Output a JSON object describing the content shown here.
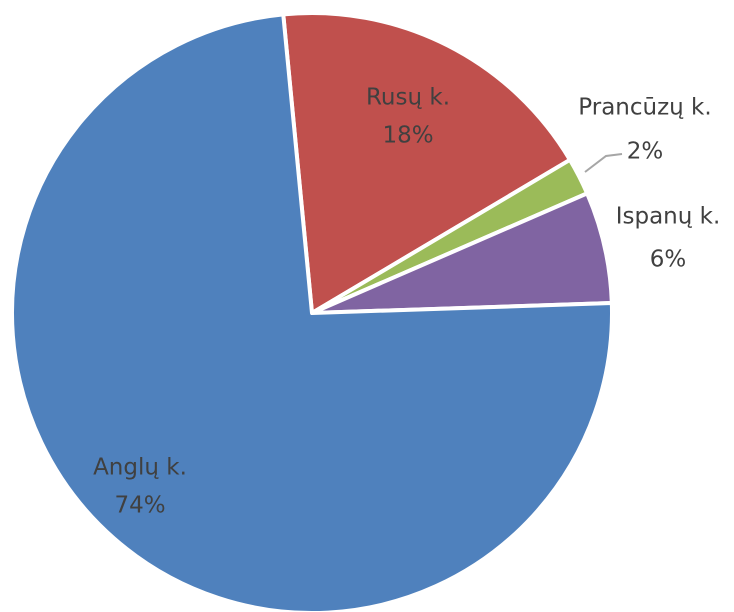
{
  "chart_data": {
    "type": "pie",
    "categories": [
      "Rusų k.",
      "Prancūzų k.",
      "Ispanų k.",
      "Anglų k."
    ],
    "values": [
      18,
      2,
      6,
      74
    ],
    "value_labels": [
      "18%",
      "2%",
      "6%",
      "74%"
    ],
    "colors": [
      "#c0504d",
      "#9bbb59",
      "#8064a2",
      "#4f81bd"
    ]
  }
}
